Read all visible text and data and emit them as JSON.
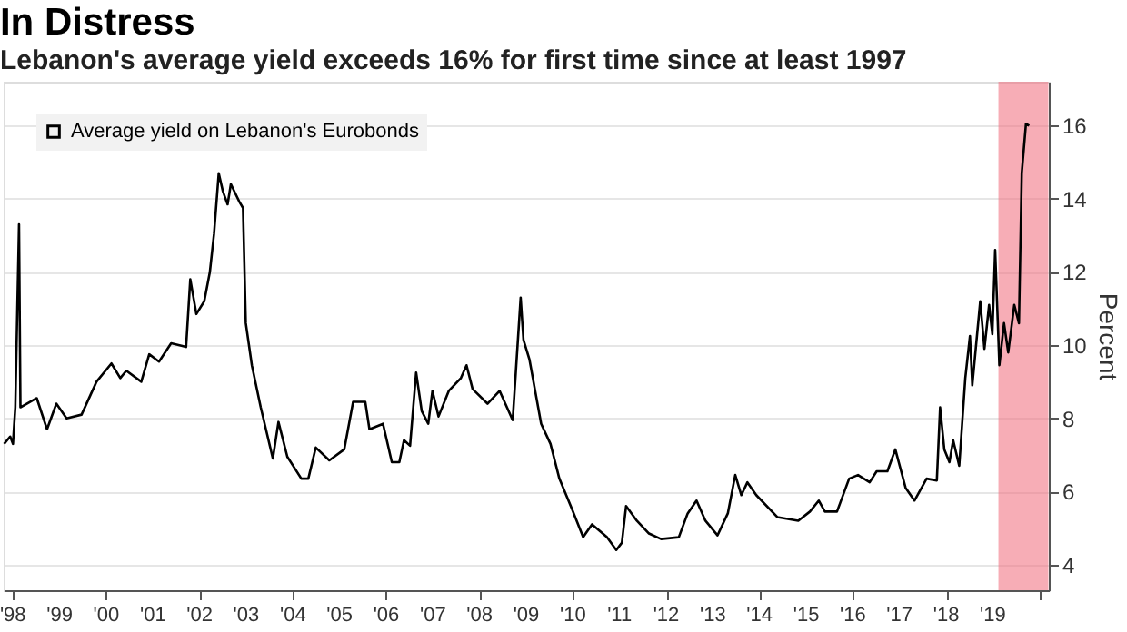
{
  "chart_data": {
    "type": "line",
    "title": "In Distress",
    "subtitle": "Lebanon's average yield exceeds 16% for first time since at least 1997",
    "ylabel": "Percent",
    "series": [
      {
        "name": "Average yield on Lebanon's Eurobonds",
        "color": "#000000",
        "x": [
          1997.81,
          1997.94,
          1998.0,
          1998.05,
          1998.13,
          1998.16,
          1998.51,
          1998.73,
          1998.93,
          1999.15,
          1999.47,
          1999.79,
          2000.11,
          2000.3,
          2000.43,
          2000.75,
          2000.92,
          2001.13,
          2001.39,
          2001.71,
          2001.8,
          2001.93,
          2002.1,
          2002.22,
          2002.31,
          2002.41,
          2002.5,
          2002.6,
          2002.67,
          2002.86,
          2002.93,
          2002.99,
          2003.12,
          2003.31,
          2003.57,
          2003.69,
          2003.88,
          2004.18,
          2004.33,
          2004.49,
          2004.78,
          2005.1,
          2005.29,
          2005.55,
          2005.64,
          2005.93,
          2006.12,
          2006.28,
          2006.38,
          2006.51,
          2006.64,
          2006.76,
          2006.9,
          2006.99,
          2007.12,
          2007.34,
          2007.6,
          2007.72,
          2007.85,
          2008.17,
          2008.43,
          2008.71,
          2008.88,
          2008.94,
          2009.07,
          2009.32,
          2009.52,
          2009.71,
          2009.97,
          2010.22,
          2010.41,
          2010.73,
          2010.93,
          2011.05,
          2011.14,
          2011.37,
          2011.63,
          2011.89,
          2012.27,
          2012.46,
          2012.65,
          2012.84,
          2013.1,
          2013.32,
          2013.48,
          2013.61,
          2013.74,
          2013.93,
          2014.38,
          2014.83,
          2015.08,
          2015.27,
          2015.4,
          2015.66,
          2015.92,
          2016.11,
          2016.36,
          2016.51,
          2016.74,
          2016.91,
          2017.13,
          2017.32,
          2017.58,
          2017.8,
          2017.87,
          2017.96,
          2018.07,
          2018.15,
          2018.28,
          2018.41,
          2018.51,
          2018.56,
          2018.73,
          2018.82,
          2018.92,
          2018.99,
          2019.05,
          2019.14,
          2019.24,
          2019.33,
          2019.46,
          2019.56,
          2019.62,
          2019.71,
          2019.78
        ],
        "values": [
          7.3,
          7.5,
          7.3,
          8.3,
          13.3,
          8.3,
          8.55,
          7.7,
          8.4,
          8.0,
          8.1,
          9.0,
          9.5,
          9.1,
          9.3,
          9.0,
          9.75,
          9.55,
          10.05,
          9.95,
          11.8,
          10.85,
          11.2,
          12.0,
          13.05,
          14.7,
          14.2,
          13.85,
          14.4,
          13.9,
          13.75,
          10.6,
          9.45,
          8.3,
          6.9,
          7.9,
          6.95,
          6.35,
          6.35,
          7.2,
          6.85,
          7.15,
          8.45,
          8.45,
          7.7,
          7.85,
          6.8,
          6.8,
          7.4,
          7.25,
          9.25,
          8.2,
          7.85,
          8.75,
          8.05,
          8.75,
          9.1,
          9.45,
          8.8,
          8.4,
          8.75,
          7.95,
          11.3,
          10.15,
          9.6,
          7.85,
          7.3,
          6.35,
          5.55,
          4.75,
          5.1,
          4.75,
          4.4,
          4.6,
          5.6,
          5.2,
          4.85,
          4.7,
          4.75,
          5.4,
          5.75,
          5.2,
          4.8,
          5.4,
          6.45,
          5.9,
          6.25,
          5.9,
          5.3,
          5.2,
          5.45,
          5.75,
          5.45,
          5.45,
          6.35,
          6.45,
          6.25,
          6.55,
          6.55,
          7.15,
          6.1,
          5.75,
          6.35,
          6.3,
          8.3,
          7.15,
          6.8,
          7.4,
          6.7,
          9.1,
          10.25,
          8.9,
          11.2,
          9.9,
          11.1,
          10.3,
          12.6,
          9.45,
          10.6,
          9.8,
          11.1,
          10.6,
          14.7,
          16.05,
          16.0
        ]
      }
    ],
    "xlim": [
      1997.8,
      2020.2
    ],
    "ylim": [
      3.3,
      17.2
    ],
    "yticks": [
      4,
      6,
      8,
      10,
      12,
      14,
      16
    ],
    "xticks": [
      {
        "value": 1998,
        "label": "'98"
      },
      {
        "value": 1999,
        "label": "'99"
      },
      {
        "value": 2000,
        "label": "'00"
      },
      {
        "value": 2001,
        "label": "'01"
      },
      {
        "value": 2002,
        "label": "'02"
      },
      {
        "value": 2003,
        "label": "'03"
      },
      {
        "value": 2004,
        "label": "'04"
      },
      {
        "value": 2005,
        "label": "'05"
      },
      {
        "value": 2006,
        "label": "'06"
      },
      {
        "value": 2007,
        "label": "'07"
      },
      {
        "value": 2008,
        "label": "'08"
      },
      {
        "value": 2009,
        "label": "'09"
      },
      {
        "value": 2010,
        "label": "'10"
      },
      {
        "value": 2011,
        "label": "'11"
      },
      {
        "value": 2012,
        "label": "'12"
      },
      {
        "value": 2013,
        "label": "'13"
      },
      {
        "value": 2014,
        "label": "'14"
      },
      {
        "value": 2015,
        "label": "'15"
      },
      {
        "value": 2016,
        "label": "'16"
      },
      {
        "value": 2017,
        "label": "'17"
      },
      {
        "value": 2018,
        "label": "'18"
      },
      {
        "value": 2019,
        "label": "'19"
      },
      {
        "value": 2020,
        "label": null
      }
    ],
    "bands": [
      {
        "axis": "x",
        "from": 2019.12,
        "to": 2020.19,
        "color": "#f06a7a"
      }
    ],
    "grid": "y",
    "legend": "top left",
    "marker": "none",
    "line_style": "solid"
  }
}
